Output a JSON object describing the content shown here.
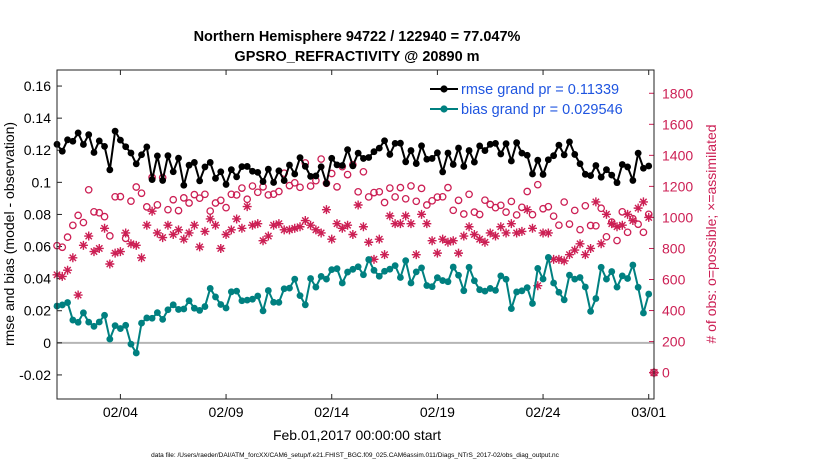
{
  "chart_data": {
    "type": "line",
    "title_line1": "Northern Hemisphere 94722 / 122940 = 77.047%",
    "title_line2": "GPSRO_REFRACTIVITY @ 20890 m",
    "xlabel": "Feb.01,2017 00:00:00 start",
    "ylabel_left": "rmse and bias (model - observation)",
    "ylabel_right": "# of obs: o=possible; ×=assimilated",
    "footnote": "data file: /Users/raeder/DAI/ATM_forcXX/CAM6_setup/f.e21.FHIST_BGC.f09_025.CAM6assim.011/Diags_NTrS_2017-02/obs_diag_output.nc",
    "xlim": [
      0.0,
      28.25
    ],
    "ylim_left": [
      -0.035,
      0.17
    ],
    "ylim_right": [
      -170,
      1950
    ],
    "x_ticks": [
      {
        "x": 3.0,
        "label": "02/04"
      },
      {
        "x": 8.0,
        "label": "02/09"
      },
      {
        "x": 13.0,
        "label": "02/14"
      },
      {
        "x": 18.0,
        "label": "02/19"
      },
      {
        "x": 23.0,
        "label": "02/24"
      },
      {
        "x": 28.0,
        "label": "03/01"
      }
    ],
    "y_ticks_left": [
      {
        "v": -0.02,
        "label": "-0.02"
      },
      {
        "v": 0.0,
        "label": "0"
      },
      {
        "v": 0.02,
        "label": "0.02"
      },
      {
        "v": 0.04,
        "label": "0.04"
      },
      {
        "v": 0.06,
        "label": "0.06"
      },
      {
        "v": 0.08,
        "label": "0.08"
      },
      {
        "v": 0.1,
        "label": "0.1"
      },
      {
        "v": 0.12,
        "label": "0.12"
      },
      {
        "v": 0.14,
        "label": "0.14"
      },
      {
        "v": 0.16,
        "label": "0.16"
      }
    ],
    "y_ticks_right": [
      {
        "v": 0,
        "label": "0"
      },
      {
        "v": 200,
        "label": "200"
      },
      {
        "v": 400,
        "label": "400"
      },
      {
        "v": 600,
        "label": "600"
      },
      {
        "v": 800,
        "label": "800"
      },
      {
        "v": 1000,
        "label": "1000"
      },
      {
        "v": 1200,
        "label": "1200"
      },
      {
        "v": 1400,
        "label": "1400"
      },
      {
        "v": 1600,
        "label": "1600"
      },
      {
        "v": 1800,
        "label": "1800"
      }
    ],
    "legend": {
      "position": "top-right",
      "entries": [
        {
          "label": "rmse grand pr = 0.11339",
          "color": "#000000"
        },
        {
          "label": "bias grand pr = 0.029546",
          "color": "#008080"
        }
      ]
    },
    "series": [
      {
        "name": "rmse grand pr = 0.11339",
        "axis": "left",
        "style": "line-dot",
        "color": "#000000",
        "x": [
          0.0,
          0.25,
          0.5,
          0.75,
          1.0,
          1.25,
          1.5,
          1.75,
          2.0,
          2.25,
          2.5,
          2.75,
          3.0,
          3.25,
          3.5,
          3.75,
          4.0,
          4.25,
          4.5,
          4.75,
          5.0,
          5.25,
          5.5,
          5.75,
          6.0,
          6.25,
          6.5,
          6.75,
          7.0,
          7.25,
          7.5,
          7.75,
          8.0,
          8.25,
          8.5,
          8.75,
          9.0,
          9.25,
          9.5,
          9.75,
          10.0,
          10.25,
          10.5,
          10.75,
          11.0,
          11.25,
          11.5,
          11.75,
          12.0,
          12.25,
          12.5,
          12.75,
          13.0,
          13.25,
          13.5,
          13.75,
          14.0,
          14.25,
          14.5,
          14.75,
          15.0,
          15.25,
          15.5,
          15.75,
          16.0,
          16.25,
          16.5,
          16.75,
          17.0,
          17.25,
          17.5,
          17.75,
          18.0,
          18.25,
          18.5,
          18.75,
          19.0,
          19.25,
          19.5,
          19.75,
          20.0,
          20.25,
          20.5,
          20.75,
          21.0,
          21.25,
          21.5,
          21.75,
          22.0,
          22.25,
          22.5,
          22.75,
          23.0,
          23.25,
          23.5,
          23.75,
          24.0,
          24.25,
          24.5,
          24.75,
          25.0,
          25.25,
          25.5,
          25.75,
          26.0,
          26.25,
          26.5,
          26.75,
          27.0,
          27.25,
          27.5,
          27.75,
          28.0
        ],
        "values": [
          0.1237,
          0.1194,
          0.1265,
          0.1256,
          0.1308,
          0.1236,
          0.1297,
          0.1186,
          0.1258,
          0.1224,
          0.1078,
          0.1319,
          0.1263,
          0.1222,
          0.1183,
          0.1115,
          0.1172,
          0.1221,
          0.1017,
          0.1165,
          0.1012,
          0.1166,
          0.1066,
          0.1151,
          0.0982,
          0.1107,
          0.1124,
          0.1009,
          0.1096,
          0.1124,
          0.1025,
          0.1066,
          0.0987,
          0.1079,
          0.1034,
          0.1098,
          0.1099,
          0.1069,
          0.1062,
          0.1005,
          0.1082,
          0.0999,
          0.1072,
          0.1011,
          0.1108,
          0.1052,
          0.1154,
          0.11,
          0.1037,
          0.104,
          0.1097,
          0.0993,
          0.115,
          0.1109,
          0.1105,
          0.1204,
          0.1103,
          0.1182,
          0.1149,
          0.1155,
          0.1191,
          0.1213,
          0.1259,
          0.1174,
          0.1243,
          0.1244,
          0.1128,
          0.1198,
          0.1117,
          0.1228,
          0.1144,
          0.1149,
          0.1184,
          0.1065,
          0.1183,
          0.1111,
          0.1214,
          0.1099,
          0.1198,
          0.1126,
          0.1227,
          0.1198,
          0.1237,
          0.1243,
          0.1177,
          0.1241,
          0.1133,
          0.1247,
          0.1182,
          0.1169,
          0.1052,
          0.1138,
          0.1049,
          0.1141,
          0.1166,
          0.1232,
          0.1171,
          0.1252,
          0.1174,
          0.1116,
          0.105,
          0.1042,
          0.1105,
          0.1032,
          0.1079,
          0.1045,
          0.0998,
          0.1111,
          0.1096,
          0.1012,
          0.1182,
          0.1088,
          0.1102
        ]
      },
      {
        "name": "bias grand pr = 0.029546",
        "axis": "left",
        "style": "line-dot",
        "color": "#008080",
        "x": [
          0.0,
          0.25,
          0.5,
          0.75,
          1.0,
          1.25,
          1.5,
          1.75,
          2.0,
          2.25,
          2.5,
          2.75,
          3.0,
          3.25,
          3.5,
          3.75,
          4.0,
          4.25,
          4.5,
          4.75,
          5.0,
          5.25,
          5.5,
          5.75,
          6.0,
          6.25,
          6.5,
          6.75,
          7.0,
          7.25,
          7.5,
          7.75,
          8.0,
          8.25,
          8.5,
          8.75,
          9.0,
          9.25,
          9.5,
          9.75,
          10.0,
          10.25,
          10.5,
          10.75,
          11.0,
          11.25,
          11.5,
          11.75,
          12.0,
          12.25,
          12.5,
          12.75,
          13.0,
          13.25,
          13.5,
          13.75,
          14.0,
          14.25,
          14.5,
          14.75,
          15.0,
          15.25,
          15.5,
          15.75,
          16.0,
          16.25,
          16.5,
          16.75,
          17.0,
          17.25,
          17.5,
          17.75,
          18.0,
          18.25,
          18.5,
          18.75,
          19.0,
          19.25,
          19.5,
          19.75,
          20.0,
          20.25,
          20.5,
          20.75,
          21.0,
          21.25,
          21.5,
          21.75,
          22.0,
          22.25,
          22.5,
          22.75,
          23.0,
          23.25,
          23.5,
          23.75,
          24.0,
          24.25,
          24.5,
          24.75,
          25.0,
          25.25,
          25.5,
          25.75,
          26.0,
          26.25,
          26.5,
          26.75,
          27.0,
          27.25,
          27.5,
          27.75,
          28.0
        ],
        "values": [
          0.0229,
          0.0236,
          0.0251,
          0.0142,
          0.0128,
          0.0187,
          0.0129,
          0.0103,
          0.013,
          0.0172,
          0.0023,
          0.0107,
          0.0089,
          0.0109,
          -0.0008,
          -0.0063,
          0.0123,
          0.0155,
          0.0153,
          0.0188,
          0.0146,
          0.0206,
          0.0237,
          0.0208,
          0.0211,
          0.0262,
          0.0216,
          0.0202,
          0.0226,
          0.0339,
          0.0286,
          0.0239,
          0.0217,
          0.0318,
          0.0322,
          0.0262,
          0.0266,
          0.0272,
          0.0292,
          0.0199,
          0.0326,
          0.0253,
          0.0252,
          0.0337,
          0.0341,
          0.0397,
          0.0294,
          0.0237,
          0.0401,
          0.0347,
          0.0414,
          0.0397,
          0.0456,
          0.0462,
          0.0373,
          0.0441,
          0.0458,
          0.0474,
          0.0424,
          0.0519,
          0.0452,
          0.0415,
          0.0446,
          0.0459,
          0.0481,
          0.0407,
          0.0512,
          0.0373,
          0.0442,
          0.0467,
          0.0357,
          0.035,
          0.0406,
          0.0388,
          0.0381,
          0.0472,
          0.0421,
          0.0325,
          0.0471,
          0.0387,
          0.0331,
          0.0322,
          0.0339,
          0.0327,
          0.0417,
          0.0396,
          0.0213,
          0.0317,
          0.0324,
          0.0344,
          0.0245,
          0.0464,
          0.0398,
          0.0532,
          0.0373,
          0.0315,
          0.0268,
          0.0422,
          0.0397,
          0.0407,
          0.0348,
          0.0196,
          0.0276,
          0.0471,
          0.0397,
          0.0444,
          0.0347,
          0.0417,
          0.0401,
          0.0485,
          0.0346,
          0.0186,
          0.0304
        ]
      },
      {
        "name": "possible",
        "axis": "right",
        "style": "open-circle",
        "color": "#cc1f54",
        "x": [
          0.0,
          0.25,
          0.5,
          0.75,
          1.0,
          1.25,
          1.5,
          1.75,
          2.0,
          2.25,
          2.5,
          2.75,
          3.0,
          3.25,
          3.5,
          3.75,
          4.0,
          4.25,
          4.5,
          4.75,
          5.0,
          5.25,
          5.5,
          5.75,
          6.0,
          6.25,
          6.5,
          6.75,
          7.0,
          7.25,
          7.5,
          7.75,
          8.0,
          8.25,
          8.5,
          8.75,
          9.0,
          9.25,
          9.5,
          9.75,
          10.0,
          10.25,
          10.5,
          10.75,
          11.0,
          11.25,
          11.5,
          11.75,
          12.0,
          12.25,
          12.5,
          12.75,
          13.0,
          13.25,
          13.5,
          13.75,
          14.0,
          14.25,
          14.5,
          14.75,
          15.0,
          15.25,
          15.5,
          15.75,
          16.0,
          16.25,
          16.5,
          16.75,
          17.0,
          17.25,
          17.5,
          17.75,
          18.0,
          18.25,
          18.5,
          18.75,
          19.0,
          19.25,
          19.5,
          19.75,
          20.0,
          20.25,
          20.5,
          20.75,
          21.0,
          21.25,
          21.5,
          21.75,
          22.0,
          22.25,
          22.5,
          22.75,
          23.0,
          23.25,
          23.5,
          23.75,
          24.0,
          24.25,
          24.5,
          24.75,
          25.0,
          25.25,
          25.5,
          25.75,
          26.0,
          26.25,
          26.5,
          26.75,
          27.0,
          27.25,
          27.5,
          27.75,
          28.0
        ],
        "values": [
          818,
          808,
          873,
          949,
          1013,
          967,
          1178,
          1036,
          1030,
          1005,
          881,
          1133,
          1134,
          865,
          1105,
          1196,
          1156,
          1068,
          1258,
          1081,
          1257,
          1050,
          1114,
          1044,
          1126,
          1093,
          1147,
          1124,
          1149,
          1041,
          1093,
          1110,
          1063,
          1149,
          1145,
          1189,
          1117,
          1202,
          1162,
          1197,
          1145,
          1150,
          1167,
          1285,
          1205,
          1223,
          1194,
          1351,
          1202,
          1237,
          1376,
          1220,
          1283,
          1197,
          1327,
          1276,
          1340,
          1165,
          1294,
          1132,
          1160,
          1165,
          1096,
          1189,
          1132,
          1192,
          1120,
          1203,
          1104,
          1187,
          1080,
          1107,
          1131,
          1133,
          1192,
          1046,
          1110,
          1022,
          1149,
          1034,
          1019,
          1111,
          1084,
          1063,
          1078,
          1034,
          1103,
          1016,
          1065,
          1167,
          1018,
          1211,
          1056,
          1069,
          1008,
          950,
          1099,
          957,
          1045,
          921,
          1075,
          948,
          946,
          1059,
          875,
          970,
          851,
          1036,
          904,
          992,
          956,
          904,
          1020
        ]
      },
      {
        "name": "assimilated",
        "axis": "right",
        "style": "asterisk",
        "color": "#cc1f54",
        "x": [
          0.0,
          0.25,
          0.5,
          0.75,
          1.0,
          1.25,
          1.5,
          1.75,
          2.0,
          2.25,
          2.5,
          2.75,
          3.0,
          3.25,
          3.5,
          3.75,
          4.0,
          4.25,
          4.5,
          4.75,
          5.0,
          5.25,
          5.5,
          5.75,
          6.0,
          6.25,
          6.5,
          6.75,
          7.0,
          7.25,
          7.5,
          7.75,
          8.0,
          8.25,
          8.5,
          8.75,
          9.0,
          9.25,
          9.5,
          9.75,
          10.0,
          10.25,
          10.5,
          10.75,
          11.0,
          11.25,
          11.5,
          11.75,
          12.0,
          12.25,
          12.5,
          12.75,
          13.0,
          13.25,
          13.5,
          13.75,
          14.0,
          14.25,
          14.5,
          14.75,
          15.0,
          15.25,
          15.5,
          15.75,
          16.0,
          16.25,
          16.5,
          16.75,
          17.0,
          17.25,
          17.5,
          17.75,
          18.0,
          18.25,
          18.5,
          18.75,
          19.0,
          19.25,
          19.5,
          19.75,
          20.0,
          20.25,
          20.5,
          20.75,
          21.0,
          21.25,
          21.5,
          21.75,
          22.0,
          22.25,
          22.5,
          22.75,
          23.0,
          23.25,
          23.5,
          23.75,
          24.0,
          24.25,
          24.5,
          24.75,
          25.0,
          25.25,
          25.5,
          25.75,
          26.0,
          26.25,
          26.5,
          26.75,
          27.0,
          27.25,
          27.5,
          27.75,
          28.0
        ],
        "values": [
          630,
          620,
          660,
          740,
          500,
          820,
          880,
          780,
          800,
          930,
          700,
          770,
          780,
          900,
          830,
          820,
          740,
          950,
          1040,
          900,
          870,
          950,
          890,
          920,
          860,
          900,
          950,
          810,
          910,
          990,
          950,
          800,
          890,
          920,
          990,
          930,
          1070,
          950,
          960,
          850,
          880,
          950,
          960,
          920,
          920,
          930,
          940,
          980,
          950,
          920,
          900,
          1050,
          860,
          960,
          930,
          950,
          890,
          1080,
          940,
          840,
          730,
          860,
          760,
          1010,
          960,
          960,
          1010,
          960,
          760,
          1020,
          960,
          850,
          770,
          860,
          840,
          850,
          770,
          880,
          940,
          890,
          860,
          840,
          900,
          880,
          940,
          900,
          960,
          900,
          910,
          1050,
          930,
          560,
          900,
          900,
          730,
          730,
          720,
          760,
          790,
          830,
          760,
          800,
          1100,
          830,
          1020,
          960,
          940,
          950,
          1020,
          980,
          1060,
          1100,
          1000
        ]
      }
    ],
    "extra_point": {
      "x": 28.25,
      "value": 0,
      "axis": "right",
      "style": "circle-asterisk",
      "color": "#cc1f54"
    }
  }
}
